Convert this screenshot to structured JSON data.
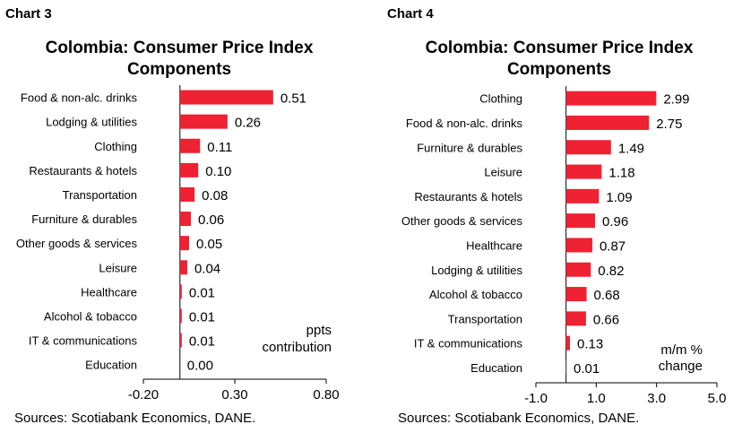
{
  "chart_data": [
    {
      "type": "bar",
      "orientation": "horizontal",
      "chart_label": "Chart 3",
      "title_lines": [
        "Colombia: Consumer Price Index",
        "Components"
      ],
      "categories": [
        "Food & non-alc. drinks",
        "Lodging & utilities",
        "Clothing",
        "Restaurants & hotels",
        "Transportation",
        "Furniture & durables",
        "Other goods & services",
        "Leisure",
        "Healthcare",
        "Alcohol & tobacco",
        "IT & communications",
        "Education"
      ],
      "values": [
        0.51,
        0.26,
        0.11,
        0.1,
        0.08,
        0.06,
        0.05,
        0.04,
        0.01,
        0.01,
        0.01,
        0.0
      ],
      "value_labels": [
        "0.51",
        "0.26",
        "0.11",
        "0.10",
        "0.08",
        "0.06",
        "0.05",
        "0.04",
        "0.01",
        "0.01",
        "0.01",
        "0.00"
      ],
      "xlim": [
        -0.2,
        0.8
      ],
      "x_ticks": [
        -0.2,
        0.3,
        0.8
      ],
      "x_tick_labels": [
        "-0.20",
        "0.30",
        "0.80"
      ],
      "unit_note_lines": [
        "ppts",
        "contribution"
      ],
      "source": "Sources: Scotiabank Economics, DANE.",
      "bar_color": "#ee2233"
    },
    {
      "type": "bar",
      "orientation": "horizontal",
      "chart_label": "Chart 4",
      "title_lines": [
        "Colombia: Consumer Price Index",
        "Components"
      ],
      "categories": [
        "Clothing",
        "Food & non-alc. drinks",
        "Furniture & durables",
        "Leisure",
        "Restaurants & hotels",
        "Other goods & services",
        "Healthcare",
        "Lodging & utilities",
        "Alcohol & tobacco",
        "Transportation",
        "IT & communications",
        "Education"
      ],
      "values": [
        2.99,
        2.75,
        1.49,
        1.18,
        1.09,
        0.96,
        0.87,
        0.82,
        0.68,
        0.66,
        0.13,
        0.01
      ],
      "value_labels": [
        "2.99",
        "2.75",
        "1.49",
        "1.18",
        "1.09",
        "0.96",
        "0.87",
        "0.82",
        "0.68",
        "0.66",
        "0.13",
        "0.01"
      ],
      "xlim": [
        -1.0,
        5.0
      ],
      "x_ticks": [
        -1.0,
        1.0,
        3.0,
        5.0
      ],
      "x_tick_labels": [
        "-1.0",
        "1.0",
        "3.0",
        "5.0"
      ],
      "unit_note_lines": [
        "m/m %",
        "change"
      ],
      "source": "Sources: Scotiabank Economics, DANE.",
      "bar_color": "#ee2233"
    }
  ]
}
